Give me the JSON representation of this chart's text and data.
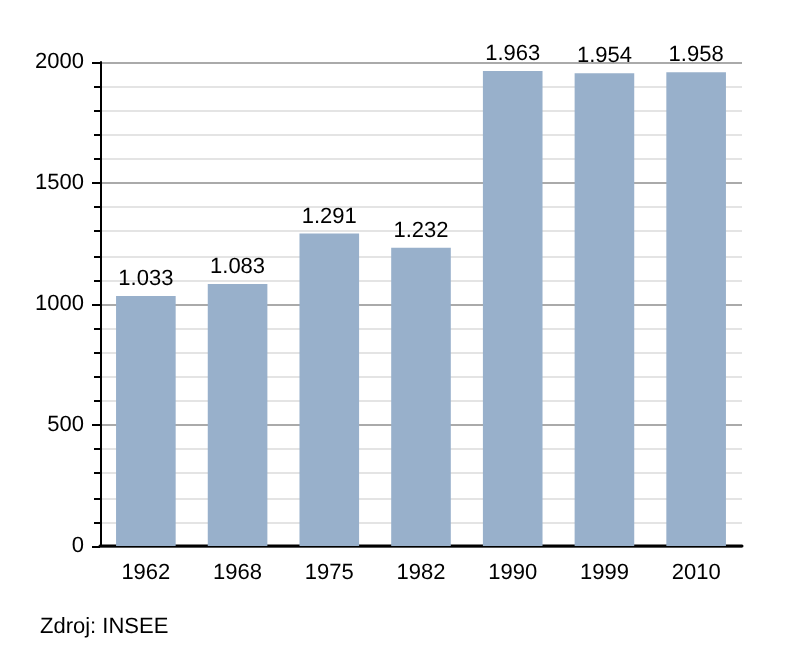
{
  "chart_data": {
    "type": "bar",
    "categories": [
      "1962",
      "1968",
      "1975",
      "1982",
      "1990",
      "1999",
      "2010"
    ],
    "values": [
      1033,
      1083,
      1291,
      1232,
      1963,
      1954,
      1958
    ],
    "value_labels": [
      "1.033",
      "1.083",
      "1.291",
      "1.232",
      "1.963",
      "1.954",
      "1.958"
    ],
    "color": "#98b0cb",
    "ylim": [
      0,
      2000
    ],
    "yticks": [
      0,
      500,
      1000,
      1500,
      2000
    ],
    "grid": "y",
    "annotations": [
      "Zdroj: INSEE"
    ]
  }
}
